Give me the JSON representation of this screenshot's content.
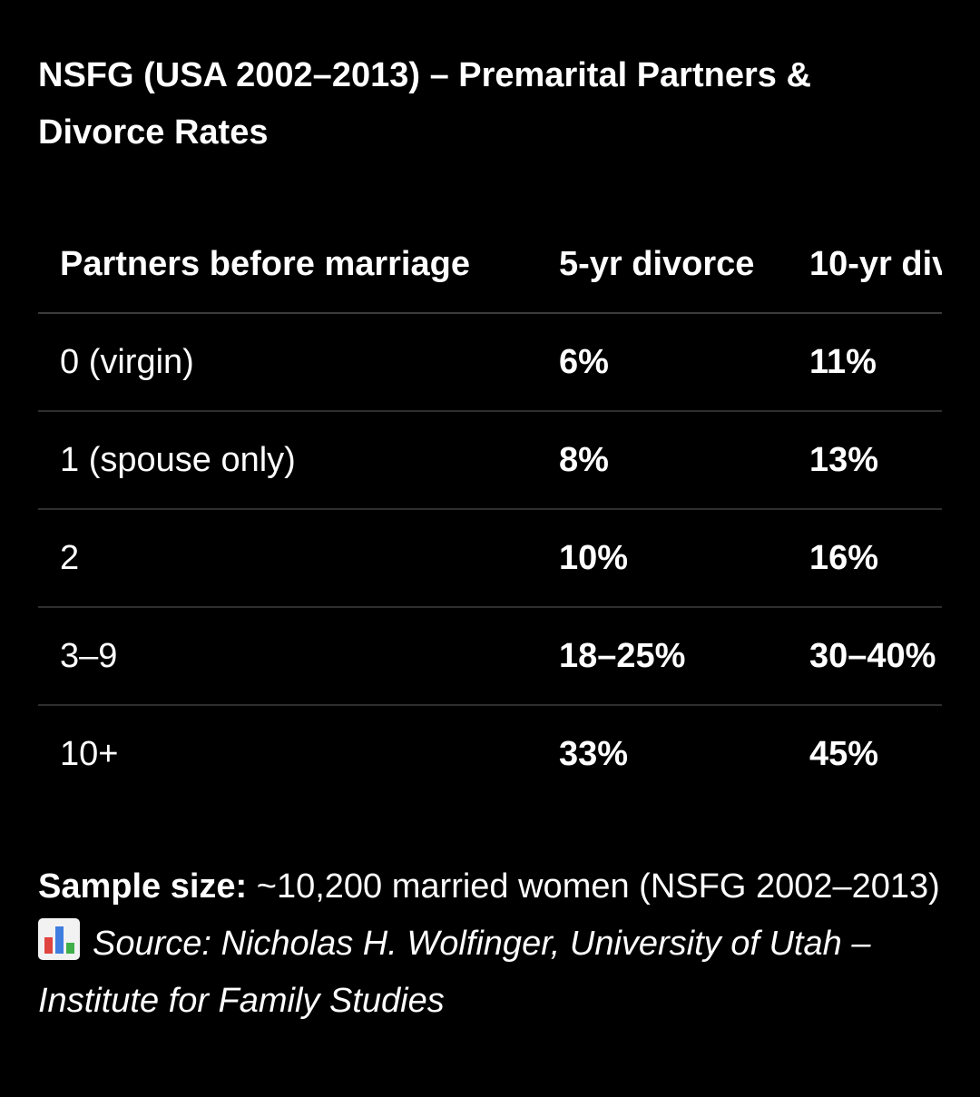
{
  "title": "NSFG (USA 2002–2013) – Premarital Partners & Divorce Rates",
  "table": {
    "headers": [
      "Partners before marriage",
      "5-yr divorce",
      "10-yr div"
    ],
    "rows": [
      [
        "0 (virgin)",
        "6%",
        "11%"
      ],
      [
        "1 (spouse only)",
        "8%",
        "13%"
      ],
      [
        "2",
        "10%",
        "16%"
      ],
      [
        "3–9",
        "18–25%",
        "30–40%"
      ],
      [
        "10+",
        "33%",
        "45%"
      ]
    ]
  },
  "footer": {
    "sample_label": "Sample size:",
    "sample_text": " ~10,200 married women (NSFG 2002–2013)",
    "source_icon": "bar-chart-icon",
    "source_text": "Source: Nicholas H. Wolfinger, University of Utah – Institute for Family Studies"
  },
  "colors": {
    "background": "#000000",
    "text": "#ffffff",
    "divider": "#2e2e2e"
  }
}
